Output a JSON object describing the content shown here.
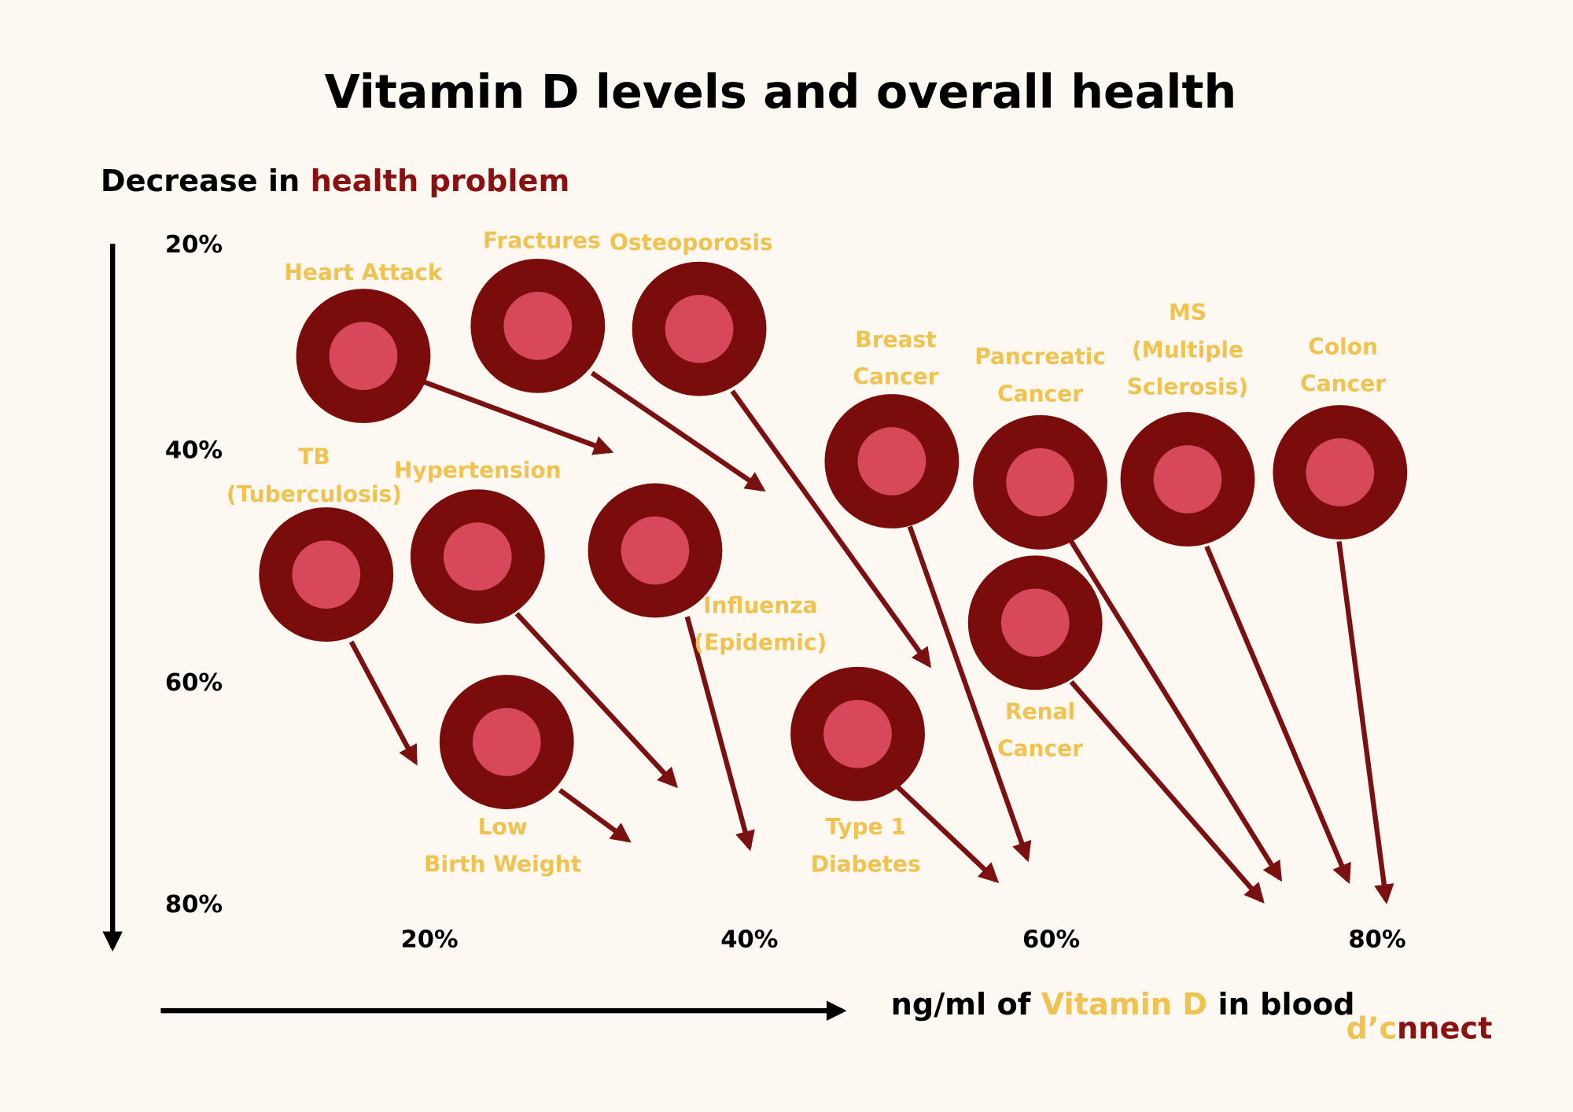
{
  "title": "Vitamin D levels and overall health",
  "y_axis": {
    "label": "Decrease in",
    "highlight": "health problem",
    "ticks": [
      "20%",
      "40%",
      "60%",
      "80%"
    ]
  },
  "x_axis": {
    "label": "ng/ml of",
    "highlight": "Vitamin D",
    "label_end": "in blood",
    "ticks": [
      "20%",
      "40%",
      "60%",
      "80%"
    ]
  },
  "items": [
    {
      "label": [
        "Heart Attack"
      ]
    },
    {
      "label": [
        "Fractures"
      ]
    },
    {
      "label": [
        "Osteoporosis"
      ]
    },
    {
      "label": [
        "Breast",
        "Cancer"
      ]
    },
    {
      "label": [
        "Pancreatic",
        "Cancer"
      ]
    },
    {
      "label": [
        "MS",
        "(Multiple",
        "Sclerosis)"
      ]
    },
    {
      "label": [
        "Colon",
        "Cancer"
      ]
    },
    {
      "label": [
        "TB",
        "(Tuberculosis)"
      ]
    },
    {
      "label": [
        "Hypertension"
      ]
    },
    {
      "label": [
        "Influenza",
        "(Epidemic)"
      ]
    },
    {
      "label": [
        "Renal",
        "Cancer"
      ]
    },
    {
      "label": [
        "Type 1",
        "Diabetes"
      ]
    },
    {
      "label": [
        "Low",
        "Birth Weight"
      ]
    }
  ],
  "logo": {
    "start": "d’c",
    "end": "nnect"
  }
}
